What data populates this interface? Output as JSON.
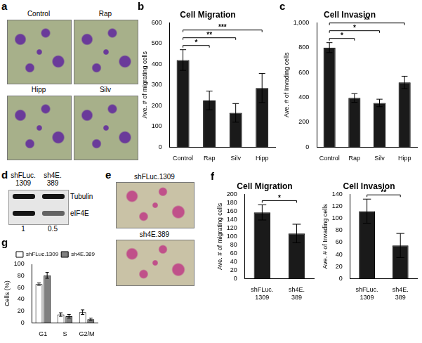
{
  "chart_data": [
    {
      "panel": "b",
      "type": "bar",
      "title": "Cell Migration",
      "y_label": "Ave. # of migrating cells",
      "categories": [
        "Control",
        "Rap",
        "Silv",
        "Hipp"
      ],
      "values": [
        420,
        225,
        165,
        285
      ],
      "errors": [
        50,
        45,
        45,
        70
      ],
      "color": "#1a1a1a",
      "ylim": [
        0,
        600
      ],
      "yticks": [
        0,
        100,
        200,
        300,
        400,
        500,
        600
      ],
      "grid": false,
      "significance": [
        {
          "from": "Control",
          "to": "Rap",
          "label": "*"
        },
        {
          "from": "Control",
          "to": "Silv",
          "label": "**"
        },
        {
          "from": "Control",
          "to": "Hipp",
          "label": "***"
        }
      ]
    },
    {
      "panel": "c",
      "type": "bar",
      "title": "Cell Invasion",
      "y_label": "Ave. # of Invading cells",
      "categories": [
        "Control",
        "Rap",
        "Silv",
        "Hipp"
      ],
      "values": [
        800,
        395,
        355,
        520
      ],
      "errors": [
        40,
        35,
        30,
        50
      ],
      "color": "#1a1a1a",
      "ylim": [
        0,
        1000
      ],
      "yticks": [
        0,
        200,
        400,
        600,
        800,
        1000
      ],
      "grid": false,
      "significance": [
        {
          "from": "Control",
          "to": "Rap",
          "label": "*"
        },
        {
          "from": "Control",
          "to": "Silv",
          "label": "*"
        },
        {
          "from": "Control",
          "to": "Hipp",
          "label": "**"
        }
      ]
    },
    {
      "panel": "f",
      "type": "bar",
      "title": "Cell Migration",
      "y_label": "Ave. # of migrating cells",
      "categories": [
        [
          "shFLuc.",
          "1309"
        ],
        [
          "sh4E.",
          "389"
        ]
      ],
      "values": [
        157,
        107
      ],
      "errors": [
        18,
        22
      ],
      "color": "#1a1a1a",
      "ylim": [
        0,
        200
      ],
      "yticks": [
        0,
        20,
        40,
        60,
        80,
        100,
        120,
        140,
        160,
        180,
        200
      ],
      "grid": false,
      "significance": [
        {
          "from": [
            "shFLuc.",
            "1309"
          ],
          "to": [
            "sh4E.",
            "389"
          ],
          "label": "*"
        }
      ]
    },
    {
      "type": "bar",
      "title": "Cell Invasion",
      "y_label": "Ave. # of Invading cells",
      "categories": [
        [
          "shFLuc.",
          "1309"
        ],
        [
          "sh4E.",
          "389"
        ]
      ],
      "values": [
        112,
        55
      ],
      "errors": [
        20,
        20
      ],
      "color": "#1a1a1a",
      "ylim": [
        0,
        140
      ],
      "yticks": [
        0,
        20,
        40,
        60,
        80,
        100,
        120,
        140
      ],
      "grid": false,
      "significance": [
        {
          "from": [
            "shFLuc.",
            "1309"
          ],
          "to": [
            "sh4E.",
            "389"
          ],
          "label": "**"
        }
      ]
    },
    {
      "panel": "g",
      "type": "bar",
      "y_label": "Cells (%)",
      "categories": [
        "G1",
        "S",
        "G2/M"
      ],
      "series": [
        {
          "name": "shFLuc.1309",
          "color": "#ffffff",
          "values": [
            66,
            14,
            18
          ],
          "errors": [
            2,
            3,
            4
          ]
        },
        {
          "name": "sh4E.389",
          "color": "#808080",
          "values": [
            81,
            11,
            6
          ],
          "errors": [
            5,
            3,
            2
          ]
        }
      ],
      "ylim": [
        0,
        100
      ],
      "yticks": [
        0,
        20,
        40,
        60,
        80,
        100
      ],
      "grid": false,
      "legend": "top-right"
    }
  ],
  "panels": {
    "a": {
      "images": [
        "Control",
        "Rap",
        "Hipp",
        "Silv"
      ]
    },
    "d": {
      "lanes": [
        [
          "shFLuc.",
          "1309"
        ],
        [
          "sh4E.",
          "389"
        ]
      ],
      "rows": [
        "Tubulin",
        "eIF4E"
      ],
      "quantification": [
        1,
        0.5
      ]
    },
    "e": {
      "images": [
        "shFLuc.1309",
        "sh4E.389"
      ]
    }
  }
}
